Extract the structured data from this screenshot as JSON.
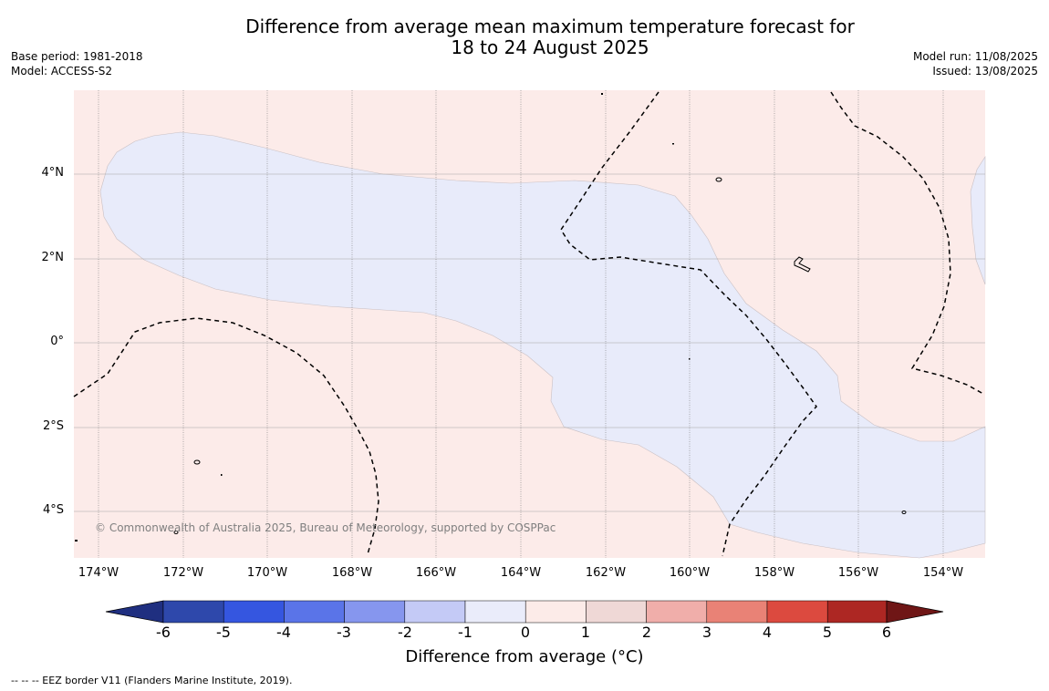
{
  "title_line1": "Difference from average mean maximum temperature forecast for",
  "title_line2": "18 to 24 August 2025",
  "base_period": "Base period: 1981-2018",
  "model": "Model: ACCESS-S2",
  "model_run": "Model run: 11/08/2025",
  "issued": "Issued: 13/08/2025",
  "lat_labels": [
    "4°N",
    "2°N",
    "0°",
    "2°S",
    "4°S"
  ],
  "lon_labels": [
    "174°W",
    "172°W",
    "170°W",
    "168°W",
    "166°W",
    "164°W",
    "162°W",
    "160°W",
    "158°W",
    "156°W",
    "154°W"
  ],
  "copyright": "© Commonwealth of Australia 2025, Bureau of Meteorology, supported by COSPPac",
  "colorbar": {
    "title": "Difference from average (°C)",
    "tick_labels": [
      "-6",
      "-5",
      "-4",
      "-3",
      "-2",
      "-1",
      "0",
      "1",
      "2",
      "3",
      "4",
      "5",
      "6"
    ],
    "colors": [
      "#23389a",
      "#2e48ab",
      "#3556e0",
      "#5a74e8",
      "#8696ee",
      "#c4caf6",
      "#eaecfa",
      "#fcebe8",
      "#efd8d6",
      "#f0aeaa",
      "#e98276",
      "#dc4a3f",
      "#ad2723",
      "#6f1616"
    ]
  },
  "footnote": "--  --  -- EEZ border V11 (Flanders Marine Institute, 2019).",
  "map_colors": {
    "warm": "#fcebe9",
    "cool": "#e8ebfa"
  }
}
